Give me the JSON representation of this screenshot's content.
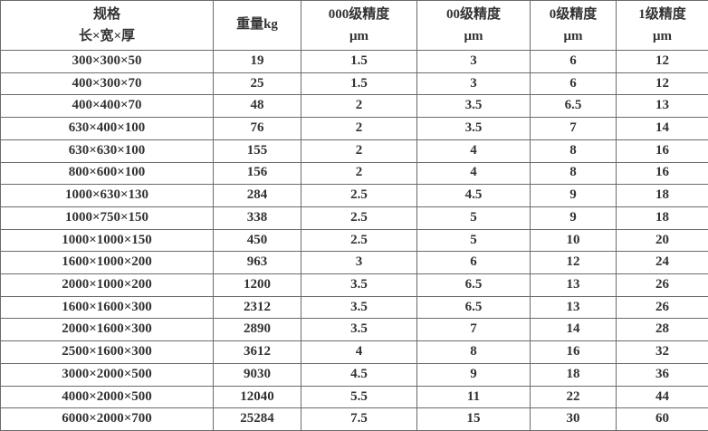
{
  "table": {
    "columns": [
      {
        "id": "spec",
        "line1": "规格",
        "line2": "长×宽×厚"
      },
      {
        "id": "weight",
        "line1": "重量kg",
        "line2": ""
      },
      {
        "id": "p000",
        "line1": "000级精度",
        "line2": "μm"
      },
      {
        "id": "p00",
        "line1": "00级精度",
        "line2": "μm"
      },
      {
        "id": "p0",
        "line1": "0级精度",
        "line2": "μm"
      },
      {
        "id": "p1",
        "line1": "1级精度",
        "line2": "μm"
      }
    ],
    "rows": [
      [
        "300×300×50",
        "19",
        "1.5",
        "3",
        "6",
        "12"
      ],
      [
        "400×300×70",
        "25",
        "1.5",
        "3",
        "6",
        "12"
      ],
      [
        "400×400×70",
        "48",
        "2",
        "3.5",
        "6.5",
        "13"
      ],
      [
        "630×400×100",
        "76",
        "2",
        "3.5",
        "7",
        "14"
      ],
      [
        "630×630×100",
        "155",
        "2",
        "4",
        "8",
        "16"
      ],
      [
        "800×600×100",
        "156",
        "2",
        "4",
        "8",
        "16"
      ],
      [
        "1000×630×130",
        "284",
        "2.5",
        "4.5",
        "9",
        "18"
      ],
      [
        "1000×750×150",
        "338",
        "2.5",
        "5",
        "9",
        "18"
      ],
      [
        "1000×1000×150",
        "450",
        "2.5",
        "5",
        "10",
        "20"
      ],
      [
        "1600×1000×200",
        "963",
        "3",
        "6",
        "12",
        "24"
      ],
      [
        "2000×1000×200",
        "1200",
        "3.5",
        "6.5",
        "13",
        "26"
      ],
      [
        "1600×1600×300",
        "2312",
        "3.5",
        "6.5",
        "13",
        "26"
      ],
      [
        "2000×1600×300",
        "2890",
        "3.5",
        "7",
        "14",
        "28"
      ],
      [
        "2500×1600×300",
        "3612",
        "4",
        "8",
        "16",
        "32"
      ],
      [
        "3000×2000×500",
        "9030",
        "4.5",
        "9",
        "18",
        "36"
      ],
      [
        "4000×2000×500",
        "12040",
        "5.5",
        "11",
        "22",
        "44"
      ],
      [
        "6000×2000×700",
        "25284",
        "7.5",
        "15",
        "30",
        "60"
      ]
    ],
    "colors": {
      "text": "#333333",
      "border": "#6b6b6b",
      "background": "#ffffff"
    }
  }
}
